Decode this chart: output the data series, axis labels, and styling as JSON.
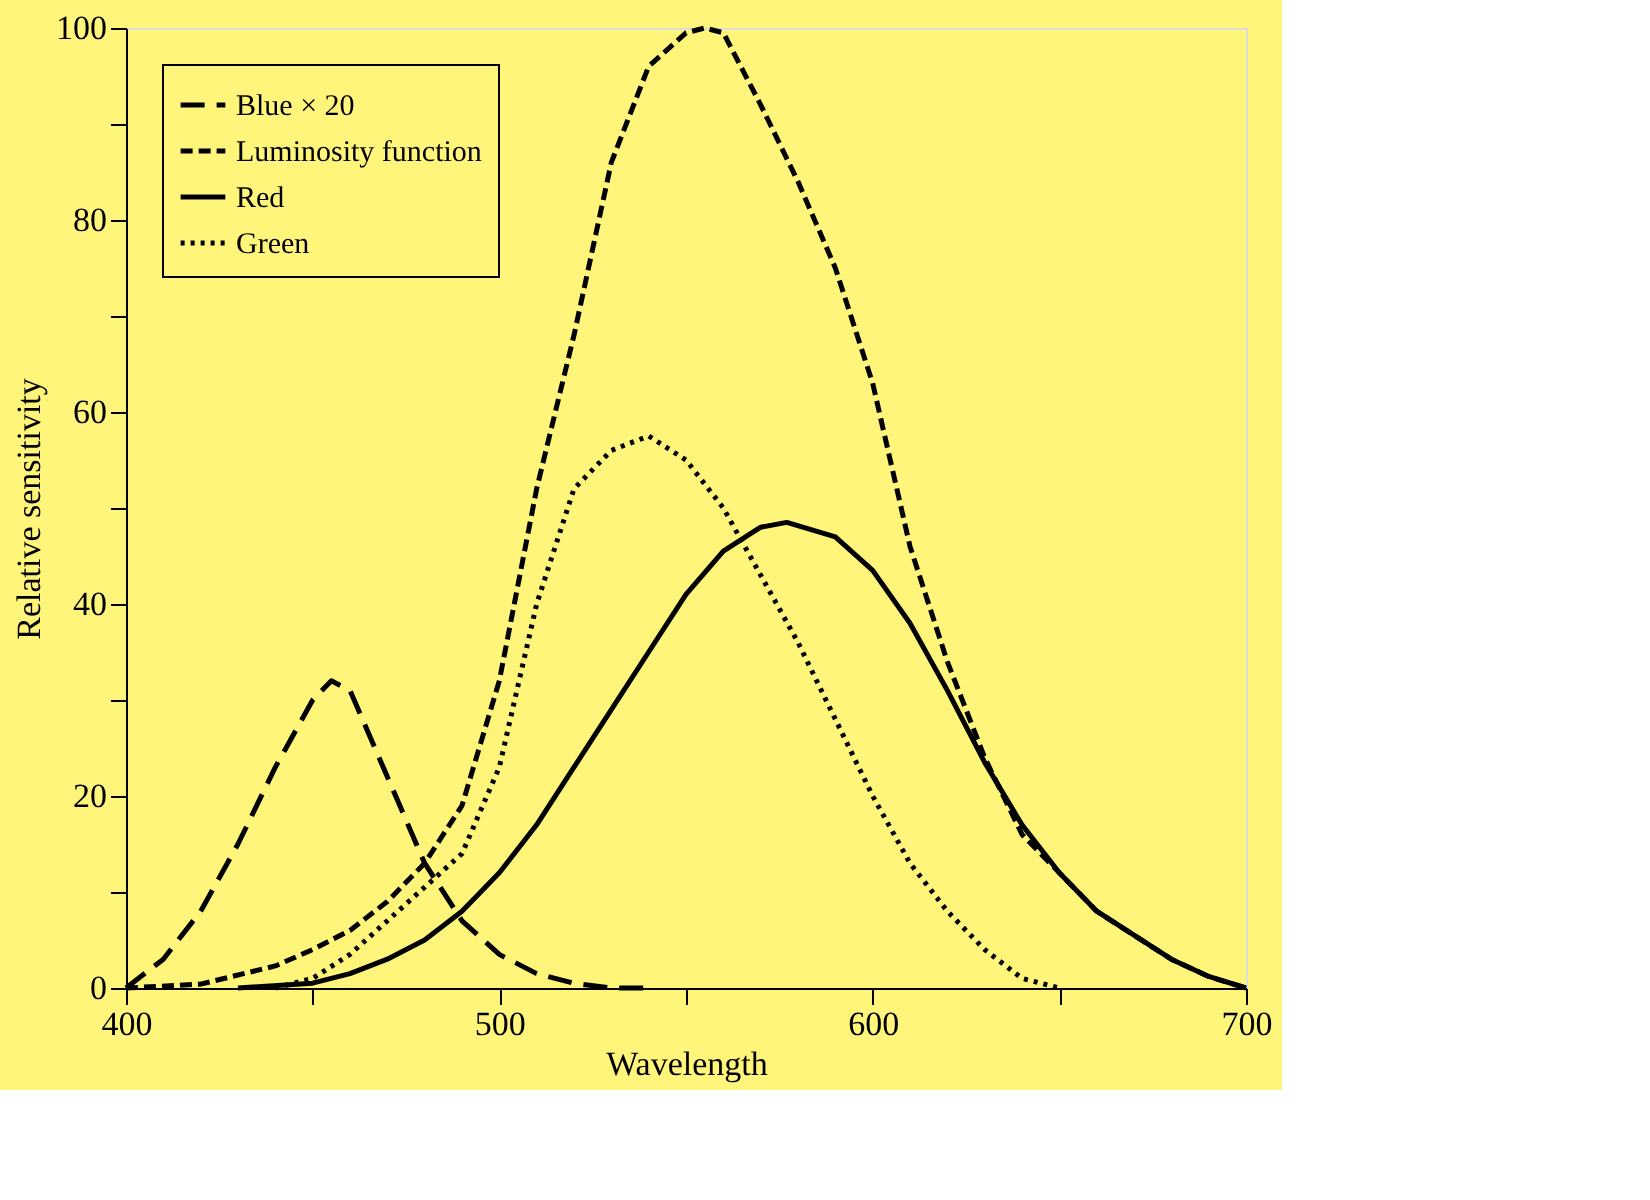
{
  "chart_data": {
    "type": "line",
    "xlabel": "Wavelength",
    "ylabel": "Relative sensitivity",
    "xlim": [
      400,
      700
    ],
    "ylim": [
      0,
      100
    ],
    "xticks": [
      400,
      {
        "value": 450,
        "label": null
      },
      500,
      {
        "value": 550,
        "label": null
      },
      600,
      {
        "value": 650,
        "label": null
      },
      700
    ],
    "yticks": [
      0,
      {
        "value": 10,
        "label": null
      },
      20,
      {
        "value": 30,
        "label": null
      },
      40,
      {
        "value": 50,
        "label": null
      },
      60,
      {
        "value": 70,
        "label": null
      },
      80,
      {
        "value": 90,
        "label": null
      },
      100
    ],
    "grid": false,
    "legend": "top left",
    "series": [
      {
        "name": "Blue × 20",
        "color": "#000000",
        "line_style": "dashed",
        "x": [
          400,
          410,
          420,
          430,
          440,
          450,
          455,
          460,
          470,
          480,
          490,
          500,
          510,
          520,
          530,
          540
        ],
        "values": [
          0,
          3,
          8,
          15,
          23,
          30,
          32,
          31,
          22,
          13,
          7,
          3.5,
          1.5,
          0.5,
          0,
          0
        ]
      },
      {
        "name": "Luminosity function",
        "color": "#000000",
        "line_style": "dashed",
        "x": [
          400,
          420,
          440,
          450,
          460,
          470,
          480,
          490,
          500,
          510,
          520,
          530,
          540,
          550,
          555,
          560,
          570,
          580,
          590,
          600,
          610,
          620,
          630,
          640,
          650,
          660,
          670,
          680,
          690,
          700
        ],
        "values": [
          0,
          0.4,
          2.3,
          4,
          6,
          9,
          13,
          19,
          32,
          52,
          68,
          86,
          96,
          99.5,
          100,
          99.5,
          92,
          84,
          75,
          63,
          46,
          34,
          24,
          16,
          12,
          8,
          5.5,
          3,
          1.2,
          0
        ]
      },
      {
        "name": "Red",
        "color": "#000000",
        "line_style": "solid",
        "x": [
          430,
          450,
          460,
          470,
          480,
          490,
          500,
          510,
          520,
          530,
          540,
          550,
          560,
          570,
          577,
          590,
          600,
          610,
          620,
          630,
          640,
          650,
          660,
          670,
          680,
          690,
          700
        ],
        "values": [
          0,
          0.5,
          1.5,
          3,
          5,
          8,
          12,
          17,
          23,
          29,
          35,
          41,
          45.5,
          48,
          48.5,
          47,
          43.5,
          38,
          31,
          23.5,
          17,
          12,
          8,
          5.5,
          3,
          1.2,
          0
        ]
      },
      {
        "name": "Green",
        "color": "#000000",
        "line_style": "dotted",
        "x": [
          440,
          450,
          460,
          470,
          480,
          490,
          500,
          510,
          520,
          530,
          540,
          550,
          560,
          570,
          580,
          590,
          600,
          610,
          620,
          630,
          640,
          650
        ],
        "values": [
          0,
          1,
          3.5,
          7,
          10.5,
          14,
          23,
          40,
          52,
          56,
          57.5,
          55,
          50,
          43,
          36,
          28,
          20,
          13,
          8,
          4,
          1,
          0
        ]
      }
    ]
  }
}
